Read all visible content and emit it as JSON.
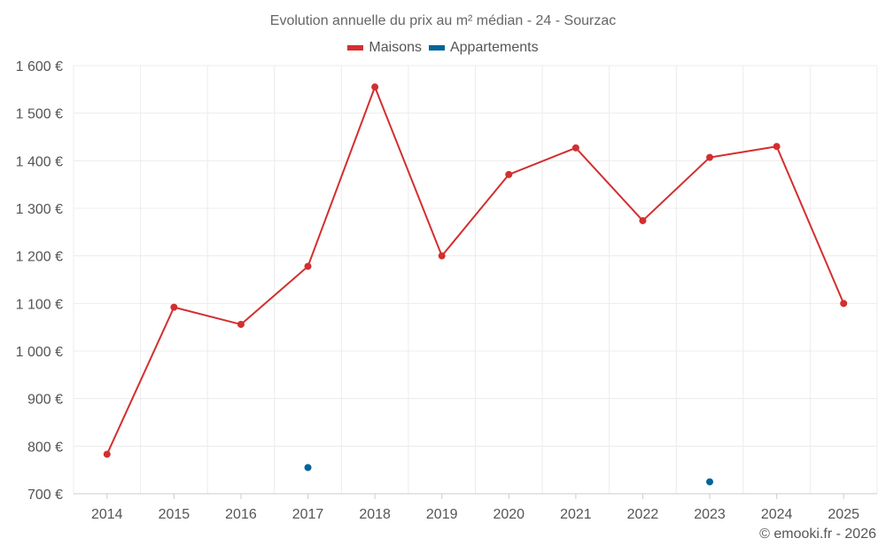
{
  "chart_data": {
    "type": "line",
    "title": "Evolution annuelle du prix au m² médian - 24 - Sourzac",
    "categories": [
      "2014",
      "2015",
      "2016",
      "2017",
      "2018",
      "2019",
      "2020",
      "2021",
      "2022",
      "2023",
      "2024",
      "2025"
    ],
    "series": [
      {
        "name": "Maisons",
        "color": "#d32f2f",
        "values": [
          783,
          1092,
          1056,
          1178,
          1555,
          1200,
          1371,
          1427,
          1274,
          1407,
          1430,
          1100
        ]
      },
      {
        "name": "Appartements",
        "color": "#01649b",
        "values": [
          null,
          null,
          null,
          755,
          null,
          null,
          null,
          null,
          null,
          725,
          null,
          null
        ]
      }
    ],
    "ylim": [
      700,
      1600
    ],
    "yticks": [
      1600,
      1500,
      1400,
      1300,
      1200,
      1100,
      1000,
      900,
      800,
      700
    ],
    "ytick_labels": [
      "1 600 €",
      "1 500 €",
      "1 400 €",
      "1 300 €",
      "1 200 €",
      "1 100 €",
      "1 000 €",
      "900 €",
      "800 €",
      "700 €"
    ],
    "xlabel": "",
    "ylabel": "",
    "grid": true,
    "legend_position": "top-center"
  },
  "credit": "© emooki.fr - 2026"
}
